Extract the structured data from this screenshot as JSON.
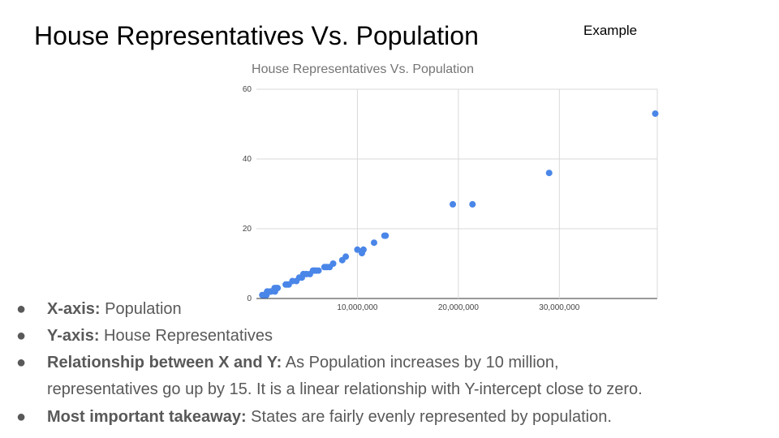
{
  "slide": {
    "title": "House Representatives Vs. Population",
    "example_label": "Example"
  },
  "bullets": [
    {
      "label": "X-axis:",
      "text": "Population"
    },
    {
      "label": "Y-axis:",
      "text": "House Representatives"
    },
    {
      "label": "Relationship between X and Y:",
      "text": "As Population increases by 10 million,",
      "text2": "representatives go up by 15. It is a linear relationship with Y-intercept close to zero."
    },
    {
      "label": "Most important takeaway:",
      "text": "States are fairly evenly represented by population."
    }
  ],
  "colors": {
    "point": "#4a86e8",
    "grid": "#d9d9d9",
    "title": "#757575",
    "bullet_text": "#595959"
  },
  "chart_data": {
    "type": "scatter",
    "title": "House Representatives Vs. Population",
    "xlabel": "",
    "ylabel": "",
    "xlim": [
      0,
      39500000
    ],
    "ylim": [
      0,
      60
    ],
    "xticks": [
      10000000,
      20000000,
      30000000
    ],
    "xtick_labels": [
      "10,000,000",
      "20,000,000",
      "30,000,000"
    ],
    "yticks": [
      0,
      20,
      40,
      60
    ],
    "ytick_labels": [
      "0",
      "20",
      "40",
      "60"
    ],
    "grid": true,
    "legend": "none",
    "points": [
      {
        "x": 580000,
        "y": 1
      },
      {
        "x": 740000,
        "y": 1
      },
      {
        "x": 890000,
        "y": 1
      },
      {
        "x": 990000,
        "y": 1
      },
      {
        "x": 1060000,
        "y": 2
      },
      {
        "x": 1100000,
        "y": 2
      },
      {
        "x": 1360000,
        "y": 2
      },
      {
        "x": 1460000,
        "y": 2
      },
      {
        "x": 1800000,
        "y": 3
      },
      {
        "x": 1840000,
        "y": 2
      },
      {
        "x": 1970000,
        "y": 3
      },
      {
        "x": 2100000,
        "y": 3
      },
      {
        "x": 2900000,
        "y": 4
      },
      {
        "x": 3030000,
        "y": 4
      },
      {
        "x": 3200000,
        "y": 4
      },
      {
        "x": 3570000,
        "y": 5
      },
      {
        "x": 3960000,
        "y": 5
      },
      {
        "x": 4240000,
        "y": 6
      },
      {
        "x": 4500000,
        "y": 6
      },
      {
        "x": 4650000,
        "y": 7
      },
      {
        "x": 4950000,
        "y": 7
      },
      {
        "x": 5300000,
        "y": 7
      },
      {
        "x": 5600000,
        "y": 8
      },
      {
        "x": 5750000,
        "y": 8
      },
      {
        "x": 5900000,
        "y": 8
      },
      {
        "x": 6150000,
        "y": 8
      },
      {
        "x": 6740000,
        "y": 9
      },
      {
        "x": 6970000,
        "y": 9
      },
      {
        "x": 7250000,
        "y": 9
      },
      {
        "x": 7600000,
        "y": 10
      },
      {
        "x": 8500000,
        "y": 11
      },
      {
        "x": 8850000,
        "y": 12
      },
      {
        "x": 10000000,
        "y": 14
      },
      {
        "x": 10450000,
        "y": 13
      },
      {
        "x": 10600000,
        "y": 14
      },
      {
        "x": 11650000,
        "y": 16
      },
      {
        "x": 12680000,
        "y": 18
      },
      {
        "x": 12800000,
        "y": 18
      },
      {
        "x": 19450000,
        "y": 27
      },
      {
        "x": 21400000,
        "y": 27
      },
      {
        "x": 28990000,
        "y": 36
      },
      {
        "x": 39500000,
        "y": 53
      }
    ]
  }
}
